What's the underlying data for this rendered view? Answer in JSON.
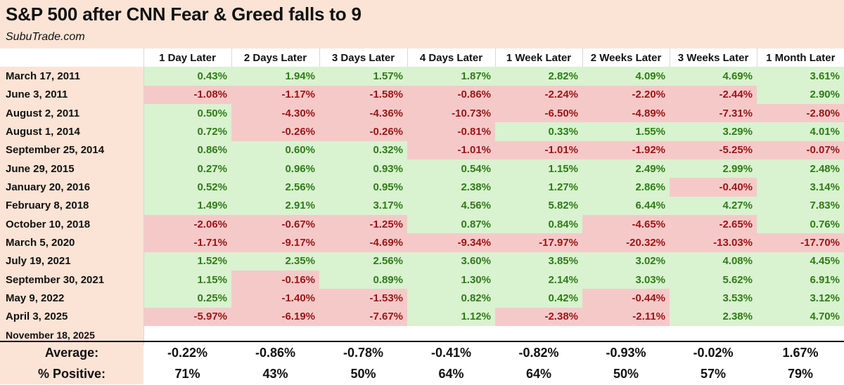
{
  "header": {
    "title": "S&P 500 after CNN Fear & Greed falls to 9",
    "source": "SubuTrade.com"
  },
  "colors": {
    "positive_fill": "#d9f2d0",
    "positive_text": "#2e7d16",
    "negative_fill": "#f6c9c9",
    "negative_text": "#9b1515",
    "label_band": "#fbe4d5"
  },
  "chart_data": {
    "type": "table",
    "title": "S&P 500 after CNN Fear & Greed falls to 9",
    "columns": [
      "1 Day Later",
      "2 Days Later",
      "3 Days Later",
      "4 Days Later",
      "1 Week Later",
      "2 Weeks Later",
      "3 Weeks Later",
      "1 Month Later"
    ],
    "rows": [
      {
        "date": "March 17, 2011",
        "values": [
          0.43,
          1.94,
          1.57,
          1.87,
          2.82,
          4.09,
          4.69,
          3.61
        ]
      },
      {
        "date": "June 3, 2011",
        "values": [
          -1.08,
          -1.17,
          -1.58,
          -0.86,
          -2.24,
          -2.2,
          -2.44,
          2.9
        ]
      },
      {
        "date": "August 2, 2011",
        "values": [
          0.5,
          -4.3,
          -4.36,
          -10.73,
          -6.5,
          -4.89,
          -7.31,
          -2.8
        ]
      },
      {
        "date": "August 1, 2014",
        "values": [
          0.72,
          -0.26,
          -0.26,
          -0.81,
          0.33,
          1.55,
          3.29,
          4.01
        ]
      },
      {
        "date": "September 25, 2014",
        "values": [
          0.86,
          0.6,
          0.32,
          -1.01,
          -1.01,
          -1.92,
          -5.25,
          -0.07
        ]
      },
      {
        "date": "June 29, 2015",
        "values": [
          0.27,
          0.96,
          0.93,
          0.54,
          1.15,
          2.49,
          2.99,
          2.48
        ]
      },
      {
        "date": "January 20, 2016",
        "values": [
          0.52,
          2.56,
          0.95,
          2.38,
          1.27,
          2.86,
          -0.4,
          3.14
        ]
      },
      {
        "date": "February 8, 2018",
        "values": [
          1.49,
          2.91,
          3.17,
          4.56,
          5.82,
          6.44,
          4.27,
          7.83
        ]
      },
      {
        "date": "October 10, 2018",
        "values": [
          -2.06,
          -0.67,
          -1.25,
          0.87,
          0.84,
          -4.65,
          -2.65,
          0.76
        ]
      },
      {
        "date": "March 5, 2020",
        "values": [
          -1.71,
          -9.17,
          -4.69,
          -9.34,
          -17.97,
          -20.32,
          -13.03,
          -17.7
        ]
      },
      {
        "date": "July 19, 2021",
        "values": [
          1.52,
          2.35,
          2.56,
          3.6,
          3.85,
          3.02,
          4.08,
          4.45
        ]
      },
      {
        "date": "September 30, 2021",
        "values": [
          1.15,
          -0.16,
          0.89,
          1.3,
          2.14,
          3.03,
          5.62,
          6.91
        ]
      },
      {
        "date": "May 9, 2022",
        "values": [
          0.25,
          -1.4,
          -1.53,
          0.82,
          0.42,
          -0.44,
          3.53,
          3.12
        ]
      },
      {
        "date": "April 3, 2025",
        "values": [
          -5.97,
          -6.19,
          -7.67,
          1.12,
          -2.38,
          -2.11,
          2.38,
          4.7
        ]
      },
      {
        "date": "November 18, 2025",
        "values": [
          null,
          null,
          null,
          null,
          null,
          null,
          null,
          null
        ]
      }
    ],
    "average_label": "Average:",
    "average": [
      "-0.22%",
      "-0.86%",
      "-0.78%",
      "-0.41%",
      "-0.82%",
      "-0.93%",
      "-0.02%",
      "1.67%"
    ],
    "positive_label": "% Positive:",
    "percent_positive": [
      "71%",
      "43%",
      "50%",
      "64%",
      "64%",
      "50%",
      "57%",
      "79%"
    ]
  }
}
